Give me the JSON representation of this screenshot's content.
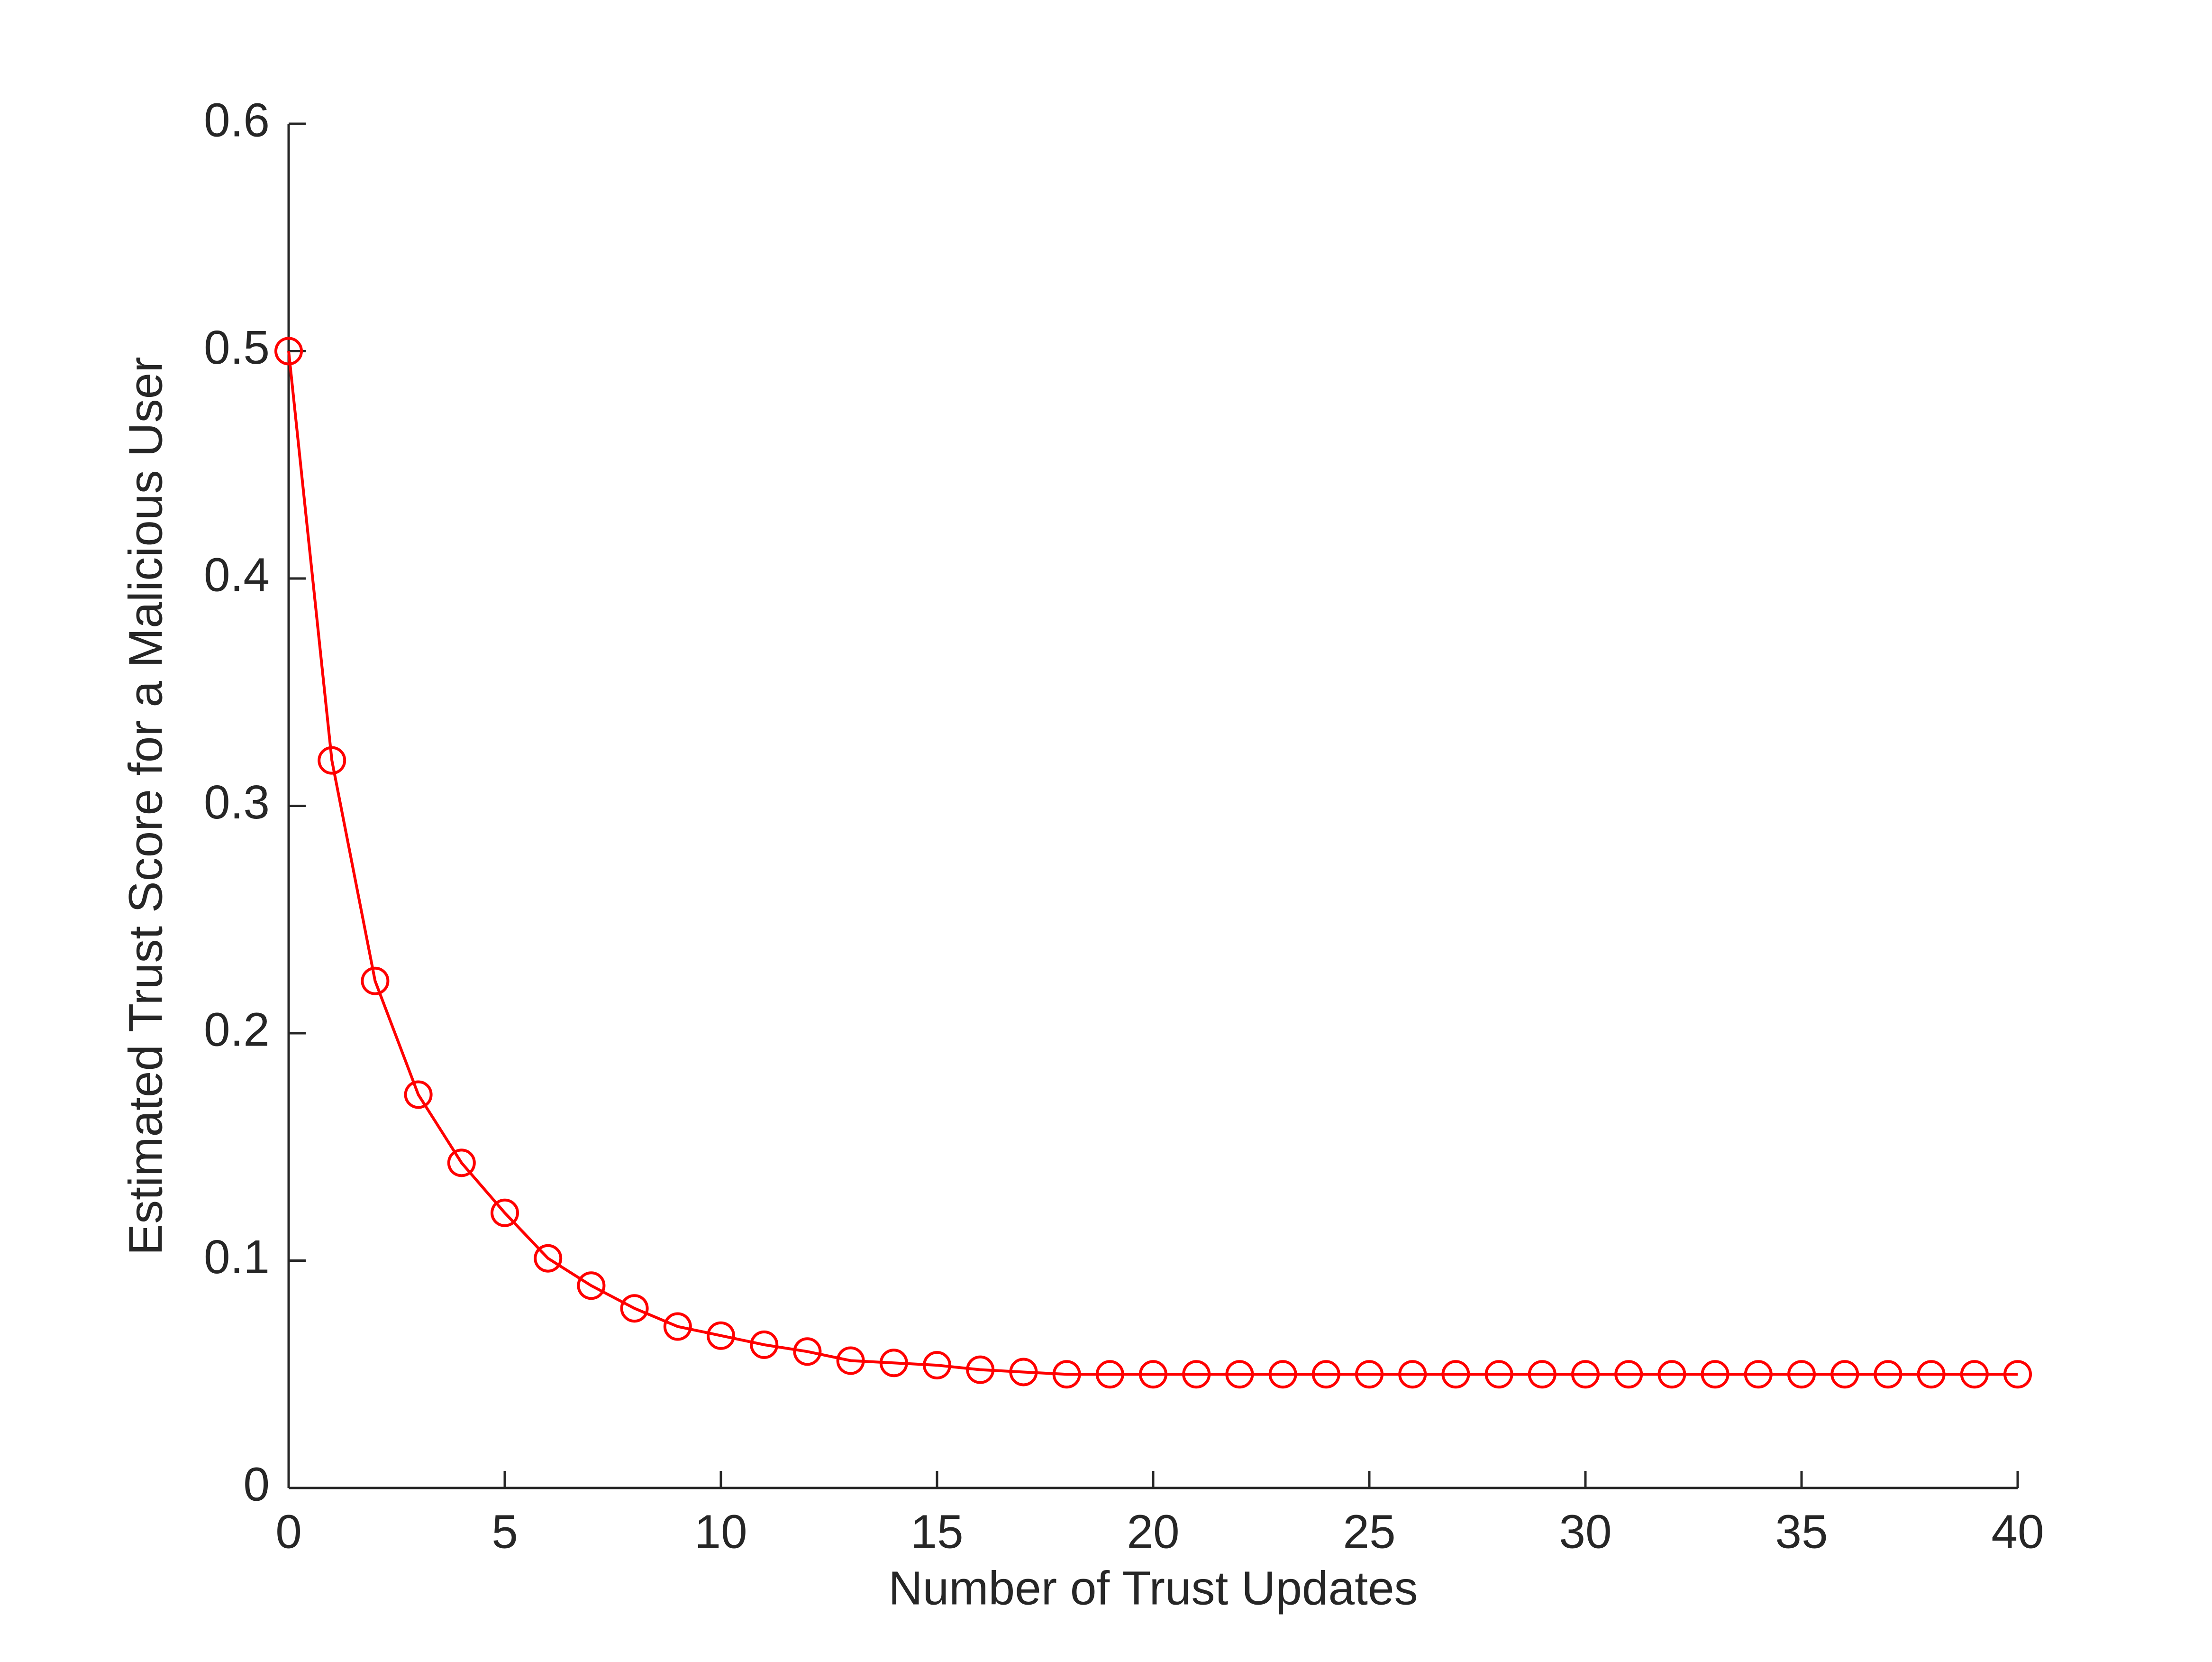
{
  "chart_data": {
    "type": "line",
    "xlabel": "Number of Trust Updates",
    "ylabel": "Estimated Trust Score for a Malicious User",
    "x": [
      0,
      1,
      2,
      3,
      4,
      5,
      6,
      7,
      8,
      9,
      10,
      11,
      12,
      13,
      14,
      15,
      16,
      17,
      18,
      19,
      20,
      21,
      22,
      23,
      24,
      25,
      26,
      27,
      28,
      29,
      30,
      31,
      32,
      33,
      34,
      35,
      36,
      37,
      38,
      39,
      40
    ],
    "values": [
      0.5,
      0.32,
      0.223,
      0.173,
      0.143,
      0.121,
      0.101,
      0.089,
      0.079,
      0.071,
      0.067,
      0.063,
      0.06,
      0.056,
      0.055,
      0.054,
      0.052,
      0.051,
      0.05,
      0.05,
      0.05,
      0.05,
      0.05,
      0.05,
      0.05,
      0.05,
      0.05,
      0.05,
      0.05,
      0.05,
      0.05,
      0.05,
      0.05,
      0.05,
      0.05,
      0.05,
      0.05,
      0.05,
      0.05,
      0.05,
      0.05
    ],
    "color": "#ff0000",
    "marker": "circle",
    "xlim": [
      0,
      40
    ],
    "xticks": [
      0,
      5,
      10,
      15,
      20,
      25,
      30,
      35,
      40
    ],
    "ylim": [
      0,
      0.6
    ],
    "yticks": [
      0,
      0.1,
      0.2,
      0.3,
      0.4,
      0.5,
      0.6
    ],
    "grid": false
  }
}
